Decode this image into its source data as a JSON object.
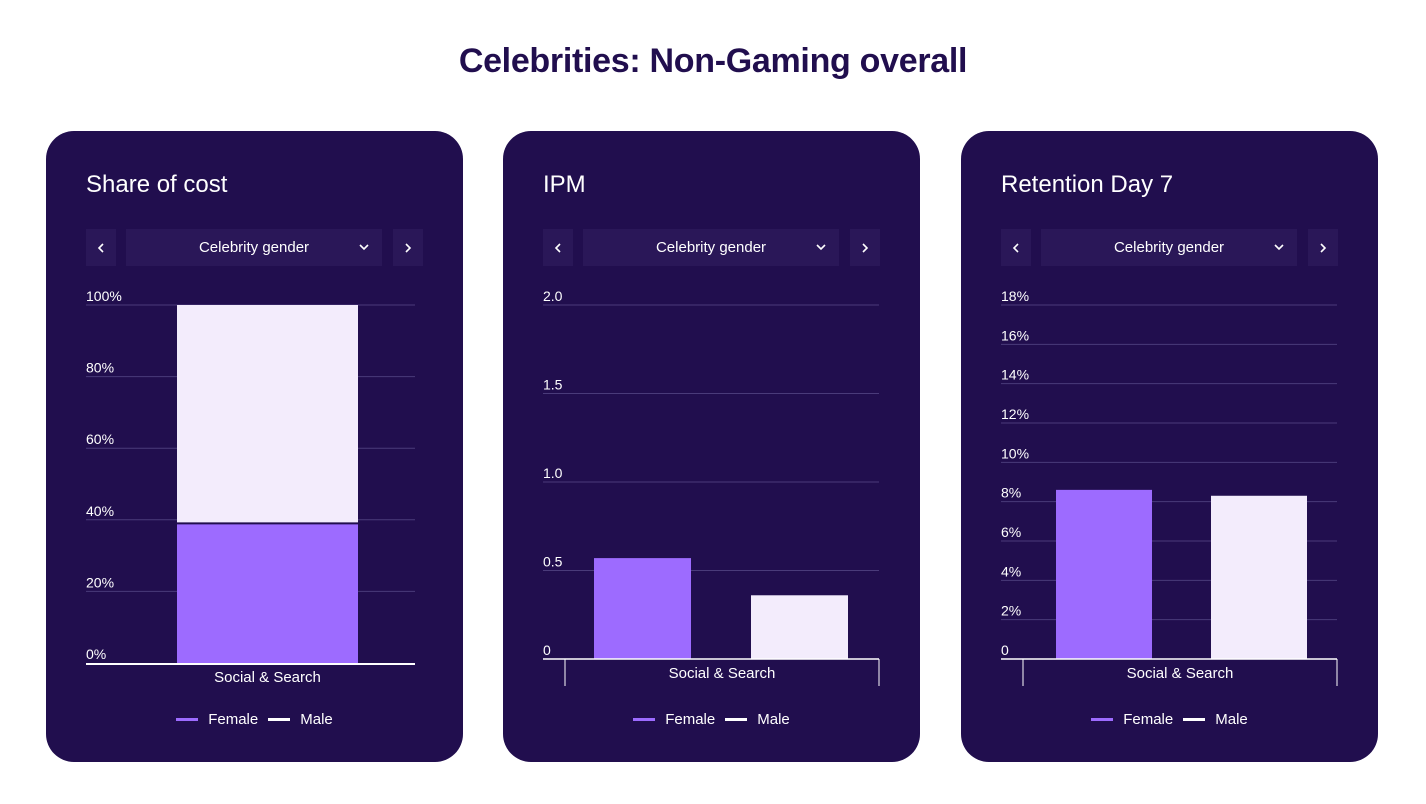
{
  "page_title": "Celebrities: Non-Gaming overall",
  "colors": {
    "card_bg": "#210e4e",
    "female": "#9d6bff",
    "male": "#f3ecfc",
    "grid": "#4a3b7a",
    "axis": "#ffffff"
  },
  "icons": {
    "prev": "chevron-left-icon",
    "next": "chevron-right-icon",
    "dropdown": "chevron-down-icon"
  },
  "cards": [
    {
      "title": "Share of cost",
      "dropdown_value": "Celebrity gender",
      "legend": [
        "Female",
        "Male"
      ]
    },
    {
      "title": "IPM",
      "dropdown_value": "Celebrity gender",
      "legend": [
        "Female",
        "Male"
      ]
    },
    {
      "title": "Retention Day 7",
      "dropdown_value": "Celebrity gender",
      "legend": [
        "Female",
        "Male"
      ]
    }
  ],
  "chart_data": [
    {
      "type": "bar",
      "stacked": true,
      "title": "Share of cost",
      "categories": [
        "Social & Search"
      ],
      "series": [
        {
          "name": "Female",
          "values": [
            39
          ]
        },
        {
          "name": "Male",
          "values": [
            61
          ]
        }
      ],
      "ylim": [
        0,
        100
      ],
      "yticks": [
        "0%",
        "20%",
        "40%",
        "60%",
        "80%",
        "100%"
      ],
      "grid": true,
      "legend_position": "bottom"
    },
    {
      "type": "bar",
      "stacked": false,
      "title": "IPM",
      "categories": [
        "Social & Search"
      ],
      "series": [
        {
          "name": "Female",
          "values": [
            0.57
          ]
        },
        {
          "name": "Male",
          "values": [
            0.36
          ]
        }
      ],
      "ylim": [
        0,
        2.0
      ],
      "yticks": [
        "0",
        "0.5",
        "1.0",
        "1.5",
        "2.0"
      ],
      "grid": true,
      "legend_position": "bottom"
    },
    {
      "type": "bar",
      "stacked": false,
      "title": "Retention Day 7",
      "categories": [
        "Social & Search"
      ],
      "series": [
        {
          "name": "Female",
          "values": [
            8.6
          ]
        },
        {
          "name": "Male",
          "values": [
            8.3
          ]
        }
      ],
      "ylim": [
        0,
        18
      ],
      "yticks": [
        "0",
        "2%",
        "4%",
        "6%",
        "8%",
        "10%",
        "12%",
        "14%",
        "16%",
        "18%"
      ],
      "grid": true,
      "legend_position": "bottom"
    }
  ]
}
